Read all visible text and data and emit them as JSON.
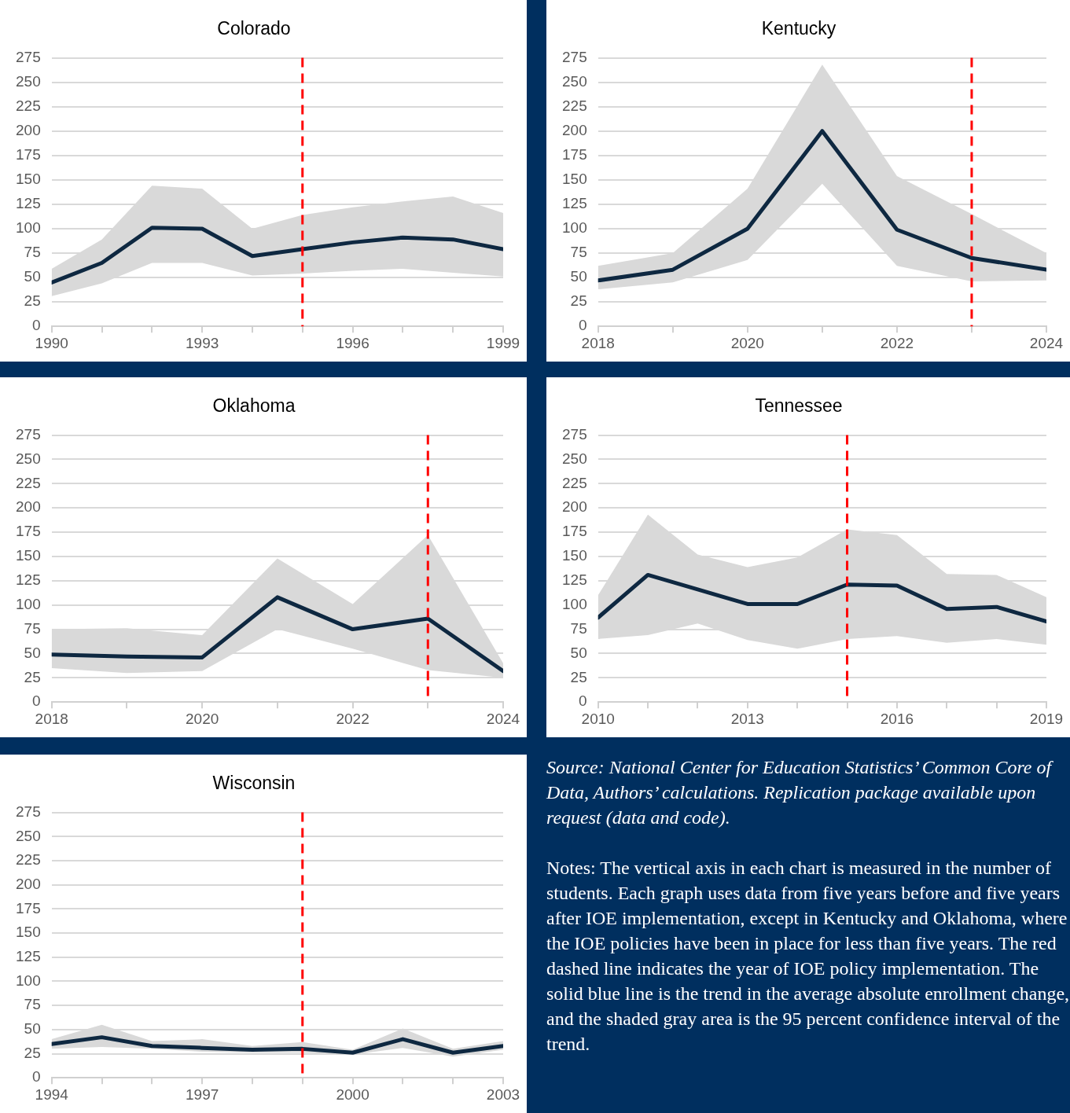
{
  "chart_data": [
    {
      "type": "line",
      "title": "Colorado",
      "x": [
        1990,
        1991,
        1992,
        1993,
        1994,
        1995,
        1996,
        1997,
        1998,
        1999
      ],
      "series": [
        {
          "color": "#0e2841",
          "values": [
            45,
            65,
            101,
            100,
            72,
            79,
            86,
            91,
            89,
            79
          ],
          "upper": [
            59,
            89,
            144,
            141,
            100,
            114,
            122,
            128,
            133,
            116
          ],
          "lower": [
            31,
            44,
            65,
            65,
            52,
            54,
            57,
            59,
            55,
            51
          ]
        }
      ],
      "xlim": [
        1990,
        1999
      ],
      "xticks": [
        1990,
        {
          "value": 1991,
          "label": null
        },
        {
          "value": 1992,
          "label": null
        },
        1993,
        {
          "value": 1994,
          "label": null
        },
        {
          "value": 1995,
          "label": null
        },
        1996,
        {
          "value": 1997,
          "label": null
        },
        {
          "value": 1998,
          "label": null
        },
        1999
      ],
      "ylim": [
        0,
        275
      ],
      "yticks": [
        0,
        25,
        50,
        75,
        100,
        125,
        150,
        175,
        200,
        225,
        250,
        275
      ],
      "ref_lines": [
        {
          "axis": "x",
          "value": 1995,
          "color": "#ff0000",
          "line_style": "dashed"
        }
      ],
      "grid": "y",
      "legend": false,
      "marker": "none",
      "line_style": "solid"
    },
    {
      "type": "line",
      "title": "Kentucky",
      "x": [
        2018,
        2019,
        2020,
        2021,
        2022,
        2023,
        2024
      ],
      "series": [
        {
          "color": "#0e2841",
          "values": [
            47,
            58,
            100,
            200,
            99,
            70,
            58
          ],
          "upper": [
            62,
            75,
            141,
            268,
            154,
            115,
            75
          ],
          "lower": [
            38,
            45,
            68,
            146,
            62,
            46,
            47
          ]
        }
      ],
      "xlim": [
        2018,
        2024
      ],
      "xticks": [
        2018,
        {
          "value": 2019,
          "label": null
        },
        2020,
        {
          "value": 2021,
          "label": null
        },
        2022,
        {
          "value": 2023,
          "label": null
        },
        2024
      ],
      "ylim": [
        0,
        275
      ],
      "yticks": [
        0,
        25,
        50,
        75,
        100,
        125,
        150,
        175,
        200,
        225,
        250,
        275
      ],
      "ref_lines": [
        {
          "axis": "x",
          "value": 2023,
          "color": "#ff0000",
          "line_style": "dashed"
        }
      ],
      "grid": "y",
      "legend": false,
      "marker": "none",
      "line_style": "solid"
    },
    {
      "type": "line",
      "title": "Oklahoma",
      "x": [
        2018,
        2019,
        2020,
        2021,
        2022,
        2023,
        2024
      ],
      "series": [
        {
          "color": "#0e2841",
          "values": [
            49,
            47,
            46,
            108,
            75,
            86,
            32
          ],
          "upper": [
            75,
            76,
            69,
            148,
            101,
            172,
            40
          ],
          "lower": [
            35,
            30,
            32,
            75,
            55,
            33,
            25
          ]
        }
      ],
      "xlim": [
        2018,
        2024
      ],
      "xticks": [
        2018,
        {
          "value": 2019,
          "label": null
        },
        2020,
        {
          "value": 2021,
          "label": null
        },
        2022,
        {
          "value": 2023,
          "label": null
        },
        2024
      ],
      "ylim": [
        0,
        275
      ],
      "yticks": [
        0,
        25,
        50,
        75,
        100,
        125,
        150,
        175,
        200,
        225,
        250,
        275
      ],
      "ref_lines": [
        {
          "axis": "x",
          "value": 2023,
          "color": "#ff0000",
          "line_style": "dashed"
        }
      ],
      "grid": "y",
      "legend": false,
      "marker": "none",
      "line_style": "solid"
    },
    {
      "type": "line",
      "title": "Tennessee",
      "x": [
        2010,
        2011,
        2012,
        2013,
        2014,
        2015,
        2016,
        2017,
        2018,
        2019
      ],
      "series": [
        {
          "color": "#0e2841",
          "values": [
            87,
            131,
            116,
            101,
            101,
            121,
            120,
            96,
            98,
            83
          ],
          "upper": [
            110,
            193,
            152,
            139,
            149,
            178,
            172,
            132,
            131,
            108
          ],
          "lower": [
            65,
            69,
            81,
            64,
            55,
            65,
            68,
            61,
            65,
            59
          ]
        }
      ],
      "xlim": [
        2010,
        2019
      ],
      "xticks": [
        2010,
        {
          "value": 2011,
          "label": null
        },
        {
          "value": 2012,
          "label": null
        },
        2013,
        {
          "value": 2014,
          "label": null
        },
        {
          "value": 2015,
          "label": null
        },
        2016,
        {
          "value": 2017,
          "label": null
        },
        {
          "value": 2018,
          "label": null
        },
        2019
      ],
      "ylim": [
        0,
        275
      ],
      "yticks": [
        0,
        25,
        50,
        75,
        100,
        125,
        150,
        175,
        200,
        225,
        250,
        275
      ],
      "ref_lines": [
        {
          "axis": "x",
          "value": 2015,
          "color": "#ff0000",
          "line_style": "dashed"
        }
      ],
      "grid": "y",
      "legend": false,
      "marker": "none",
      "line_style": "solid"
    },
    {
      "type": "line",
      "title": "Wisconsin",
      "x": [
        1994,
        1995,
        1996,
        1997,
        1998,
        1999,
        2000,
        2001,
        2002,
        2003
      ],
      "series": [
        {
          "color": "#0e2841",
          "values": [
            35,
            42,
            33,
            31,
            29,
            30,
            26,
            40,
            26,
            33
          ],
          "upper": [
            40,
            55,
            38,
            40,
            33,
            37,
            29,
            51,
            30,
            38
          ],
          "lower": [
            30,
            32,
            30,
            27,
            26,
            26,
            24,
            31,
            22,
            29
          ]
        }
      ],
      "xlim": [
        1994,
        2003
      ],
      "xticks": [
        1994,
        {
          "value": 1995,
          "label": null
        },
        {
          "value": 1996,
          "label": null
        },
        1997,
        {
          "value": 1998,
          "label": null
        },
        {
          "value": 1999,
          "label": null
        },
        2000,
        {
          "value": 2001,
          "label": null
        },
        {
          "value": 2002,
          "label": null
        },
        2003
      ],
      "ylim": [
        0,
        275
      ],
      "yticks": [
        0,
        25,
        50,
        75,
        100,
        125,
        150,
        175,
        200,
        225,
        250,
        275
      ],
      "ref_lines": [
        {
          "axis": "x",
          "value": 1999,
          "color": "#ff0000",
          "line_style": "dashed"
        }
      ],
      "grid": "y",
      "legend": false,
      "marker": "none",
      "line_style": "solid"
    },
    {
      "type": "other",
      "annotations": [
        "Source: National Center for Education Statistics’ Common Core of Data, Authors’ calculations. Replication package available upon request (data and code).",
        "Notes: The vertical axis in each chart is measured in the number of students. Each graph uses data from five years before and five years after IOE implementation, except in Kentucky and Oklahoma, where the IOE policies have been in place for less than five years. The red dashed line indicates the year of IOE policy implementation. The solid blue line is the trend in the average absolute enrollment change, and the shaded gray area is the 95 percent confidence interval of the trend."
      ]
    }
  ]
}
